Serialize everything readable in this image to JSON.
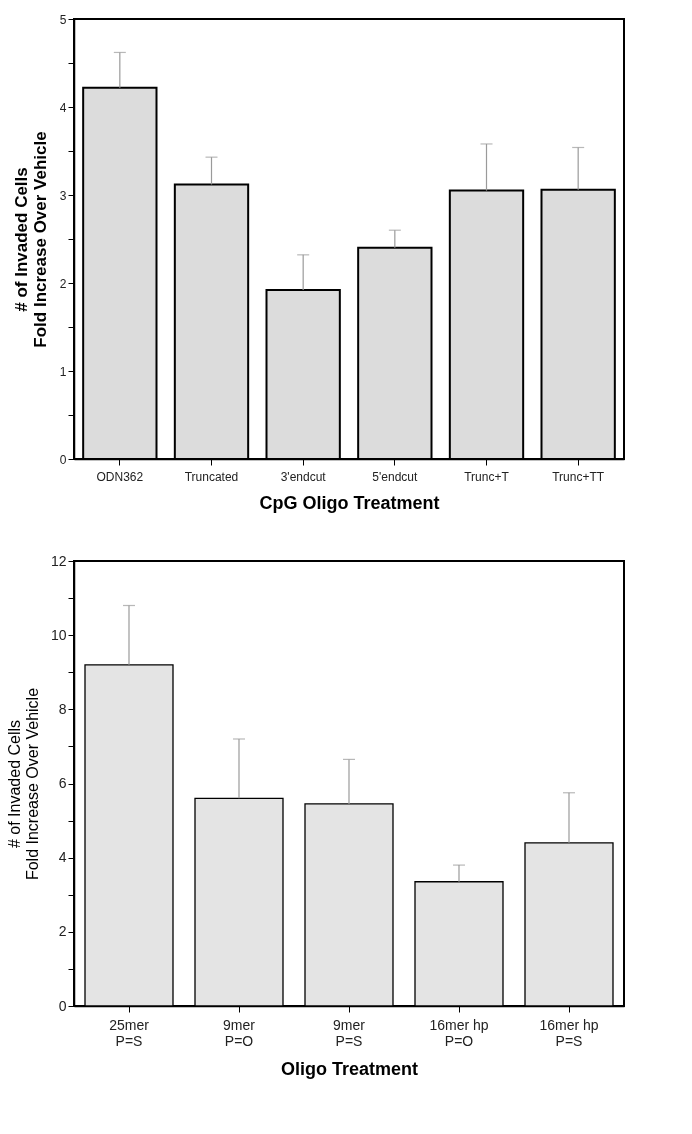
{
  "chart_data": [
    {
      "type": "bar",
      "xlabel": "CpG Oligo Treatment",
      "ylabel": "# of Invaded Cells\nFold Increase Over Vehicle",
      "categories": [
        "ODN362",
        "Truncated",
        "3'endcut",
        "5'endcut",
        "Trunc+T",
        "Trunc+TT"
      ],
      "values": [
        4.22,
        3.12,
        1.92,
        2.4,
        3.05,
        3.06
      ],
      "color": "#dcdcdc",
      "errors": [
        [
          4.22,
          4.62
        ],
        [
          3.12,
          3.43
        ],
        [
          1.92,
          2.32
        ],
        [
          2.4,
          2.6
        ],
        [
          3.05,
          3.58
        ],
        [
          3.06,
          3.54
        ]
      ],
      "ylim": [
        0,
        5
      ],
      "yticks": [
        0,
        {
          "value": 0.5,
          "label": null
        },
        1,
        {
          "value": 1.5,
          "label": null
        },
        2,
        {
          "value": 2.5,
          "label": null
        },
        3,
        {
          "value": 3.5,
          "label": null
        },
        4,
        {
          "value": 4.5,
          "label": null
        },
        5
      ],
      "grid": false
    },
    {
      "type": "bar",
      "xlabel": "Oligo Treatment",
      "ylabel": "# of Invaded Cells\nFold Increase Over Vehicle",
      "categories": [
        "25mer\nP=S",
        "9mer\nP=O",
        "9mer\nP=S",
        "16mer hp\nP=O",
        "16mer hp\nP=S"
      ],
      "values": [
        9.2,
        5.6,
        5.45,
        3.35,
        4.4
      ],
      "color": "#e4e4e4",
      "errors": [
        [
          9.2,
          10.8
        ],
        [
          5.6,
          7.2
        ],
        [
          5.45,
          6.65
        ],
        [
          3.35,
          3.8
        ],
        [
          4.4,
          5.75
        ]
      ],
      "ylim": [
        0,
        12
      ],
      "yticks": [
        0,
        {
          "value": 1,
          "label": null
        },
        2,
        {
          "value": 3,
          "label": null
        },
        4,
        {
          "value": 5,
          "label": null
        },
        6,
        {
          "value": 7,
          "label": null
        },
        8,
        {
          "value": 9,
          "label": null
        },
        10,
        {
          "value": 11,
          "label": null
        },
        12
      ],
      "grid": false
    }
  ]
}
